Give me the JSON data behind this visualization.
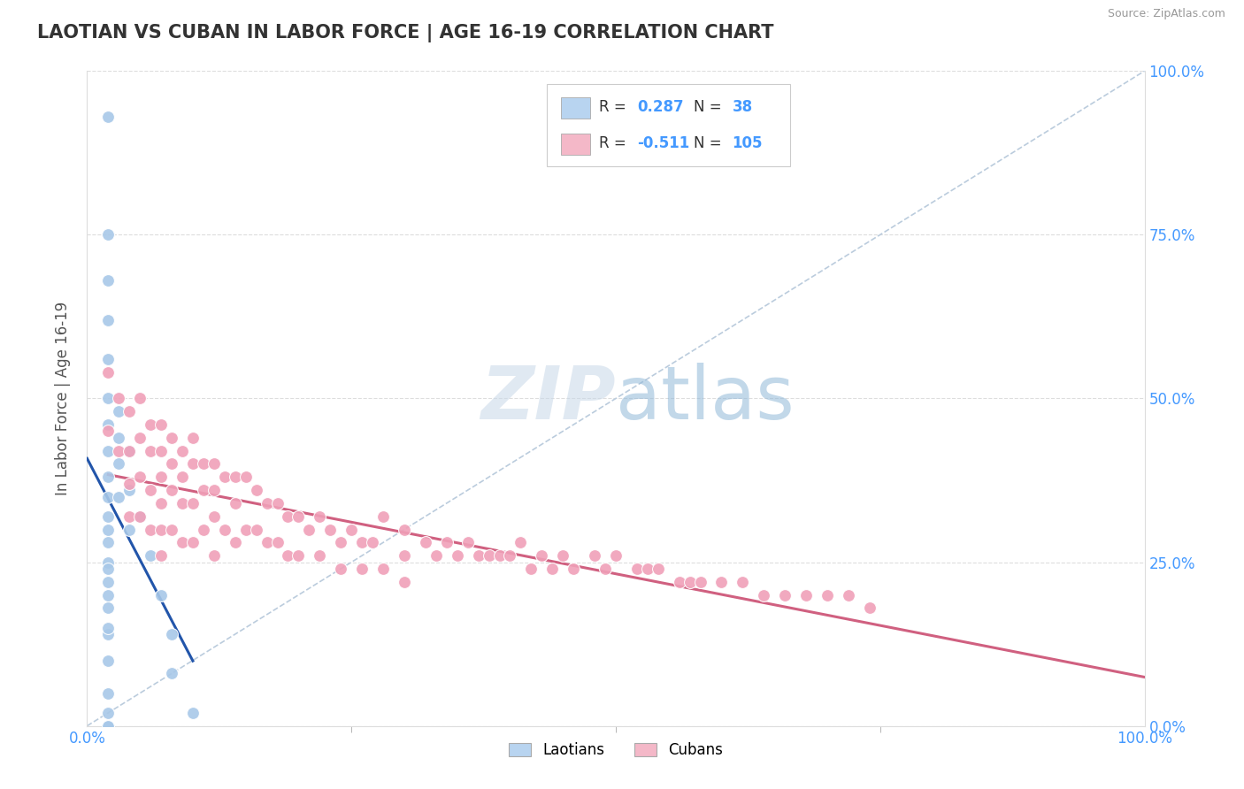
{
  "title": "LAOTIAN VS CUBAN IN LABOR FORCE | AGE 16-19 CORRELATION CHART",
  "source": "Source: ZipAtlas.com",
  "ylabel": "In Labor Force | Age 16-19",
  "laotian_color": "#a8c8e8",
  "cuban_color": "#f0a0b8",
  "trend_laotian_color": "#2255aa",
  "trend_cuban_color": "#d06080",
  "diagonal_color": "#bbccdd",
  "legend_box_laotian": "#b8d4f0",
  "legend_box_cuban": "#f4b8c8",
  "laotian_scatter_x": [
    0.02,
    0.02,
    0.02,
    0.02,
    0.02,
    0.02,
    0.02,
    0.02,
    0.02,
    0.02,
    0.02,
    0.02,
    0.02,
    0.02,
    0.02,
    0.02,
    0.02,
    0.02,
    0.02,
    0.02,
    0.02,
    0.02,
    0.02,
    0.02,
    0.02,
    0.03,
    0.03,
    0.03,
    0.03,
    0.04,
    0.04,
    0.04,
    0.05,
    0.06,
    0.07,
    0.08,
    0.08,
    0.1
  ],
  "laotian_scatter_y": [
    0.93,
    0.75,
    0.68,
    0.62,
    0.56,
    0.5,
    0.46,
    0.42,
    0.38,
    0.35,
    0.32,
    0.28,
    0.25,
    0.22,
    0.18,
    0.14,
    0.1,
    0.05,
    0.02,
    0.0,
    0.0,
    0.15,
    0.2,
    0.24,
    0.3,
    0.35,
    0.4,
    0.44,
    0.48,
    0.42,
    0.36,
    0.3,
    0.32,
    0.26,
    0.2,
    0.14,
    0.08,
    0.02
  ],
  "cuban_scatter_x": [
    0.02,
    0.02,
    0.03,
    0.03,
    0.04,
    0.04,
    0.04,
    0.04,
    0.05,
    0.05,
    0.05,
    0.05,
    0.06,
    0.06,
    0.06,
    0.06,
    0.07,
    0.07,
    0.07,
    0.07,
    0.07,
    0.07,
    0.08,
    0.08,
    0.08,
    0.08,
    0.09,
    0.09,
    0.09,
    0.09,
    0.1,
    0.1,
    0.1,
    0.1,
    0.11,
    0.11,
    0.11,
    0.12,
    0.12,
    0.12,
    0.12,
    0.13,
    0.13,
    0.14,
    0.14,
    0.14,
    0.15,
    0.15,
    0.16,
    0.16,
    0.17,
    0.17,
    0.18,
    0.18,
    0.19,
    0.19,
    0.2,
    0.2,
    0.21,
    0.22,
    0.22,
    0.23,
    0.24,
    0.24,
    0.25,
    0.26,
    0.26,
    0.27,
    0.28,
    0.28,
    0.3,
    0.3,
    0.3,
    0.32,
    0.33,
    0.34,
    0.35,
    0.36,
    0.37,
    0.38,
    0.39,
    0.4,
    0.41,
    0.42,
    0.43,
    0.44,
    0.45,
    0.46,
    0.48,
    0.49,
    0.5,
    0.52,
    0.53,
    0.54,
    0.56,
    0.57,
    0.58,
    0.6,
    0.62,
    0.64,
    0.66,
    0.68,
    0.7,
    0.72,
    0.74
  ],
  "cuban_scatter_y": [
    0.54,
    0.45,
    0.5,
    0.42,
    0.48,
    0.42,
    0.37,
    0.32,
    0.5,
    0.44,
    0.38,
    0.32,
    0.46,
    0.42,
    0.36,
    0.3,
    0.46,
    0.42,
    0.38,
    0.34,
    0.3,
    0.26,
    0.44,
    0.4,
    0.36,
    0.3,
    0.42,
    0.38,
    0.34,
    0.28,
    0.44,
    0.4,
    0.34,
    0.28,
    0.4,
    0.36,
    0.3,
    0.4,
    0.36,
    0.32,
    0.26,
    0.38,
    0.3,
    0.38,
    0.34,
    0.28,
    0.38,
    0.3,
    0.36,
    0.3,
    0.34,
    0.28,
    0.34,
    0.28,
    0.32,
    0.26,
    0.32,
    0.26,
    0.3,
    0.32,
    0.26,
    0.3,
    0.28,
    0.24,
    0.3,
    0.28,
    0.24,
    0.28,
    0.32,
    0.24,
    0.3,
    0.26,
    0.22,
    0.28,
    0.26,
    0.28,
    0.26,
    0.28,
    0.26,
    0.26,
    0.26,
    0.26,
    0.28,
    0.24,
    0.26,
    0.24,
    0.26,
    0.24,
    0.26,
    0.24,
    0.26,
    0.24,
    0.24,
    0.24,
    0.22,
    0.22,
    0.22,
    0.22,
    0.22,
    0.2,
    0.2,
    0.2,
    0.2,
    0.2,
    0.18
  ]
}
